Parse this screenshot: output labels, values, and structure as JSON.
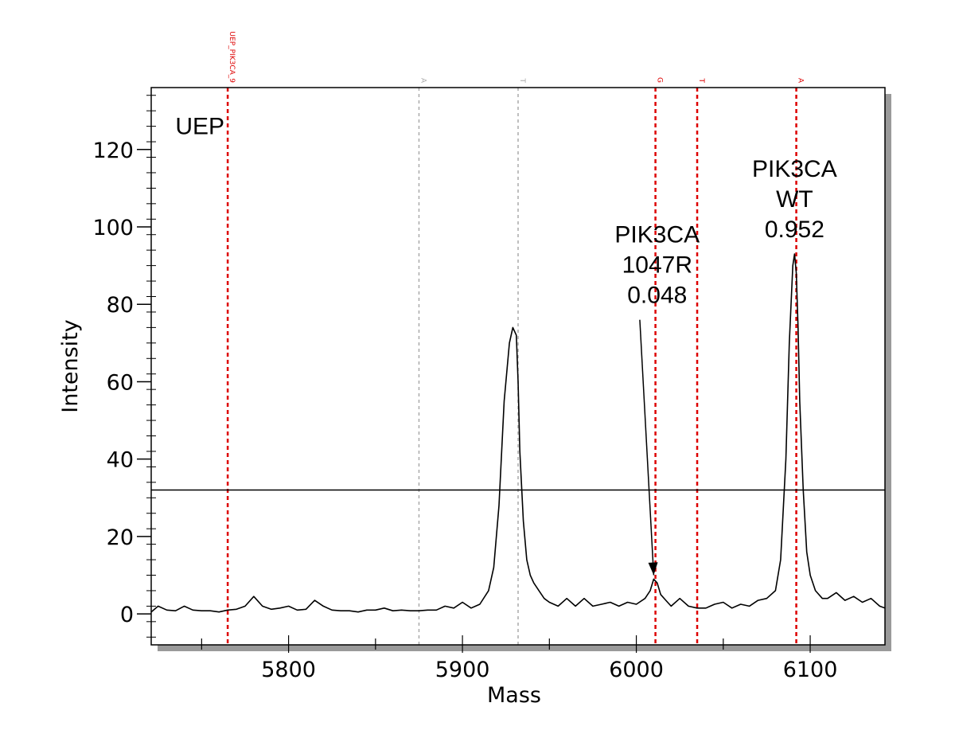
{
  "chart_data": {
    "type": "line",
    "xlabel": "Mass",
    "ylabel": "Intensity",
    "xlim": [
      5721,
      6143
    ],
    "ylim": [
      -8,
      136
    ],
    "x_ticks": [
      5800,
      5900,
      6000,
      6100
    ],
    "y_ticks": [
      0,
      20,
      40,
      60,
      80,
      100,
      120
    ],
    "threshold": 32,
    "markers": [
      {
        "label": "UEP_PIK3CA_9",
        "x": 5765,
        "color": "#dd0000"
      },
      {
        "label": "A",
        "x": 5875,
        "color": "#aaaaaa"
      },
      {
        "label": "T",
        "x": 5932,
        "color": "#aaaaaa"
      },
      {
        "label": "G",
        "x": 6011,
        "color": "#dd0000"
      },
      {
        "label": "T",
        "x": 6035,
        "color": "#dd0000"
      },
      {
        "label": "A",
        "x": 6092,
        "color": "#dd0000"
      }
    ],
    "annotations": [
      {
        "lines": [
          "UEP"
        ],
        "x": 5749,
        "y": 124,
        "align": "middle"
      },
      {
        "lines": [
          "PIK3CA",
          "1047R",
          "0.048"
        ],
        "x": 6012,
        "y": 96,
        "align": "middle"
      },
      {
        "lines": [
          "PIK3CA",
          "WT",
          "0.952"
        ],
        "x": 6091,
        "y": 113,
        "align": "middle"
      }
    ],
    "arrow": {
      "from": [
        6002,
        76
      ],
      "to": [
        6010,
        10
      ]
    },
    "series": [
      {
        "x": [
          5721,
          5725,
          5730,
          5735,
          5740,
          5745,
          5750,
          5755,
          5760,
          5765,
          5770,
          5775,
          5780,
          5785,
          5790,
          5795,
          5800,
          5805,
          5810,
          5815,
          5820,
          5825,
          5830,
          5835,
          5840,
          5845,
          5850,
          5855,
          5860,
          5865,
          5870,
          5875,
          5880,
          5885,
          5890,
          5895,
          5900,
          5905,
          5910,
          5915,
          5918,
          5921,
          5924,
          5927,
          5929,
          5931,
          5932,
          5933,
          5935,
          5937,
          5939,
          5941,
          5944,
          5947,
          5950,
          5955,
          5960,
          5965,
          5970,
          5975,
          5980,
          5985,
          5990,
          5995,
          6000,
          6005,
          6008,
          6010,
          6012,
          6014,
          6017,
          6020,
          6025,
          6030,
          6035,
          6040,
          6045,
          6050,
          6055,
          6060,
          6065,
          6070,
          6075,
          6080,
          6083,
          6086,
          6088,
          6090,
          6091,
          6092,
          6093,
          6094,
          6096,
          6098,
          6100,
          6103,
          6107,
          6110,
          6115,
          6120,
          6125,
          6130,
          6135,
          6140,
          6143
        ],
        "y": [
          0.5,
          2,
          1,
          0.8,
          2,
          1,
          0.8,
          0.8,
          0.5,
          1,
          1.2,
          2,
          4.5,
          2,
          1.2,
          1.5,
          2,
          1,
          1.2,
          3.5,
          2,
          1,
          0.8,
          0.8,
          0.5,
          1,
          1,
          1.5,
          0.8,
          1,
          0.8,
          0.8,
          1,
          1,
          2,
          1.5,
          3,
          1.5,
          2.5,
          6,
          12,
          28,
          55,
          70,
          74,
          72,
          60,
          42,
          24,
          14,
          10,
          8,
          6,
          4,
          3,
          2,
          4,
          2,
          4,
          2,
          2.5,
          3,
          2,
          3,
          2.5,
          4,
          6,
          9,
          8,
          5,
          3.5,
          2,
          4,
          2,
          1.5,
          1.5,
          2.5,
          3,
          1.5,
          2.5,
          2,
          3.5,
          4,
          6,
          14,
          40,
          70,
          90,
          93,
          88,
          74,
          55,
          32,
          16,
          10,
          6,
          4,
          4,
          5.5,
          3.5,
          4.5,
          3,
          4,
          2,
          1.5
        ]
      }
    ]
  }
}
